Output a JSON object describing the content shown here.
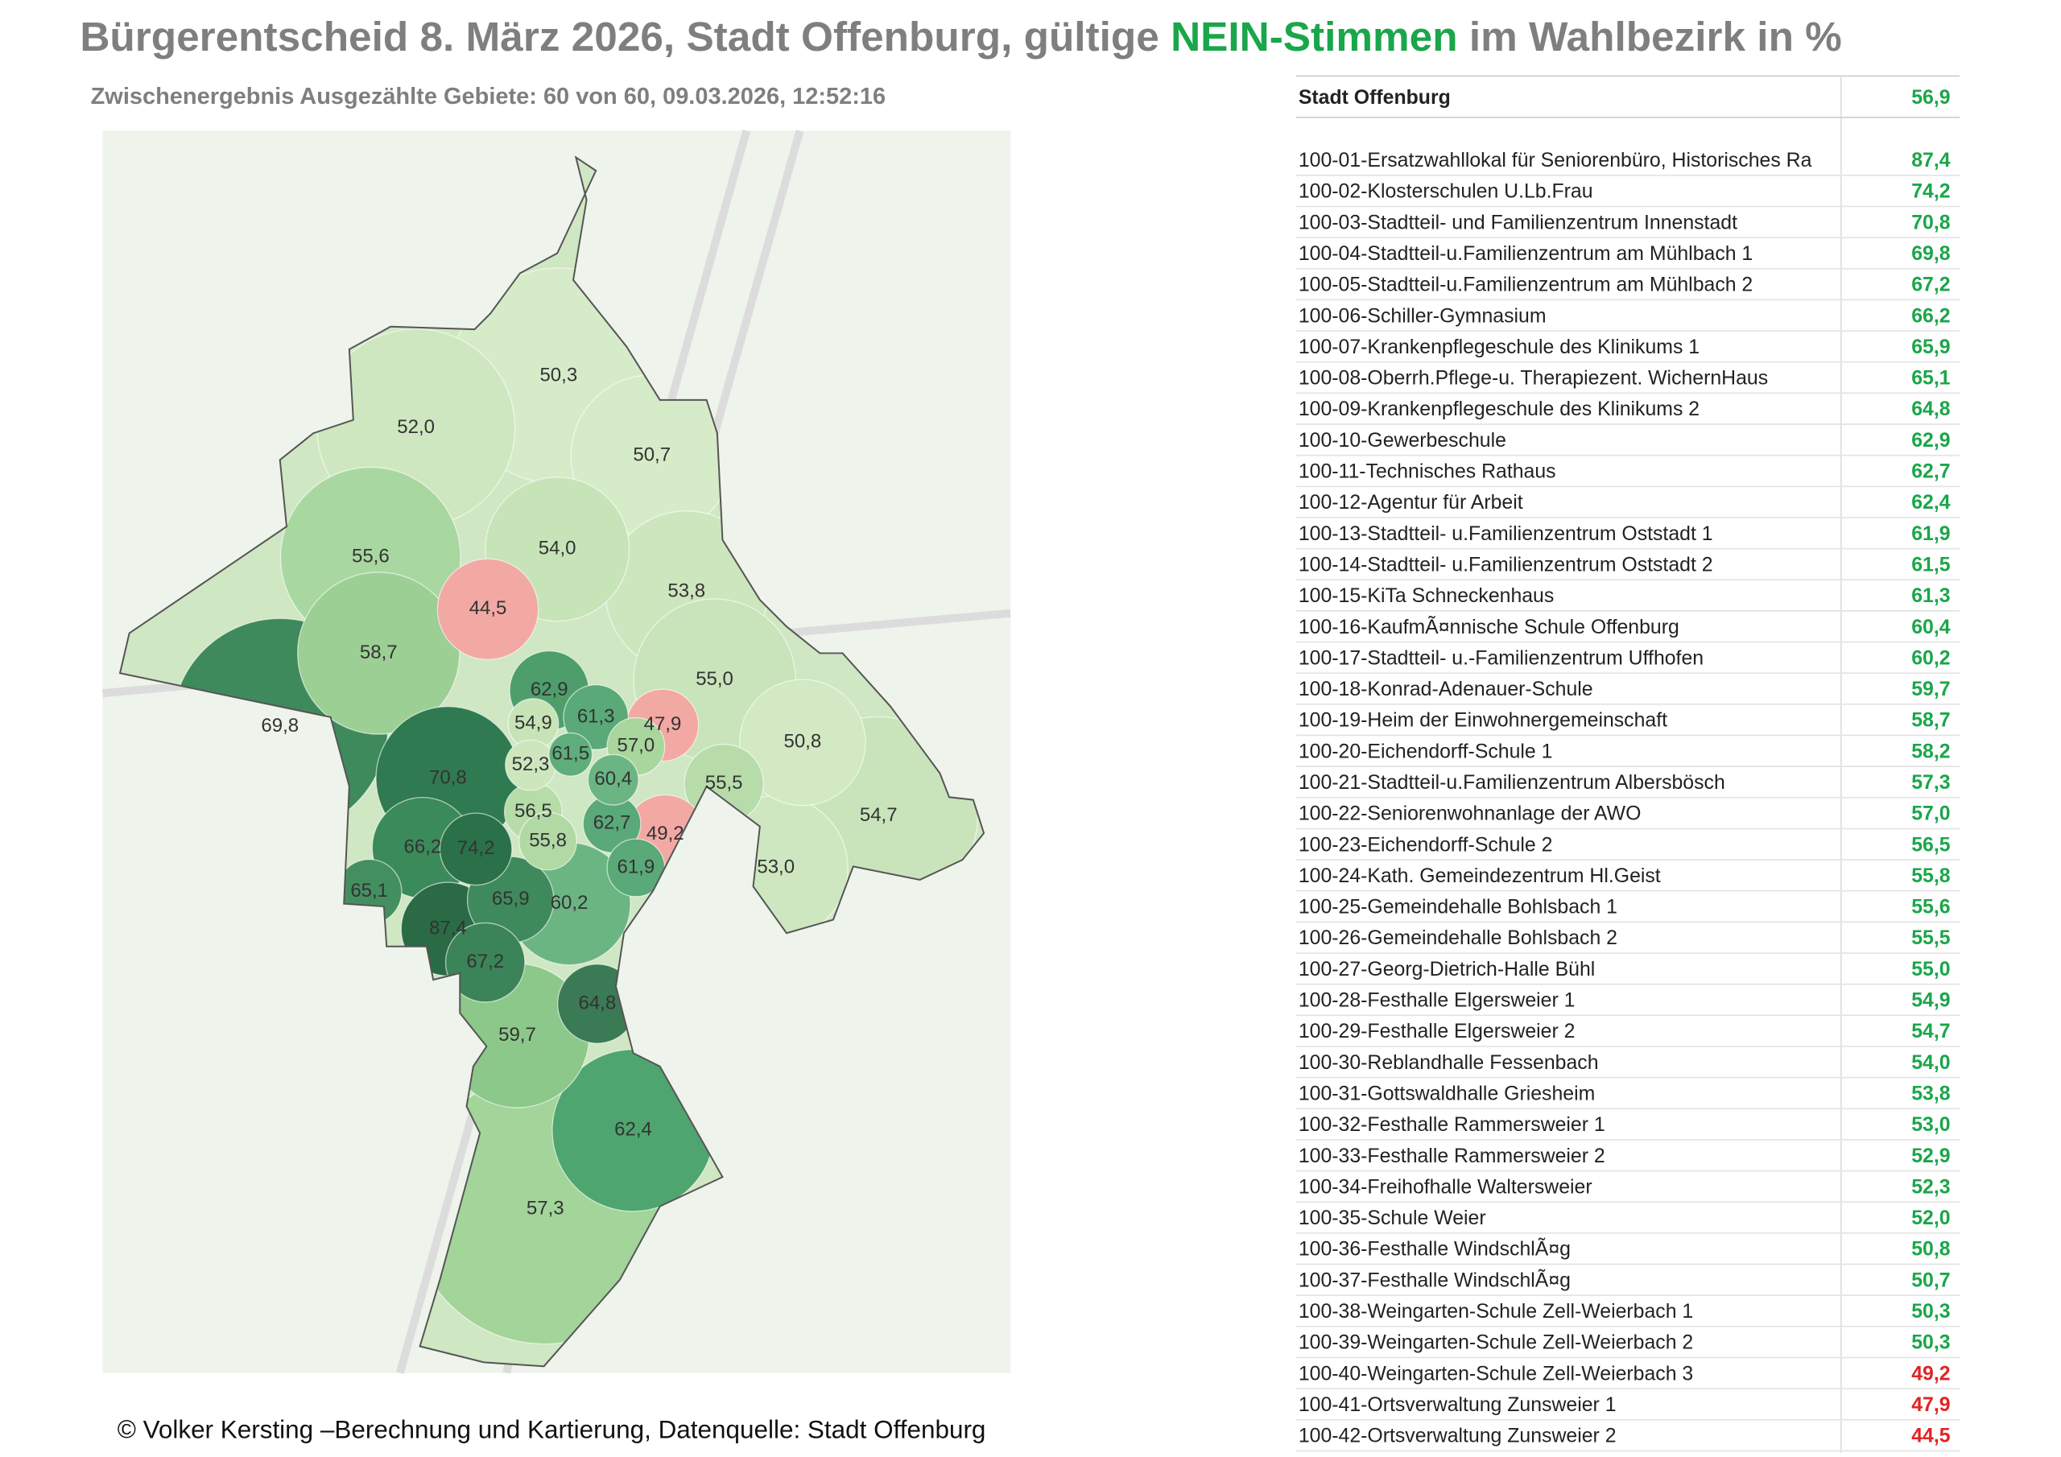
{
  "title": {
    "parts": [
      {
        "text": "Bürgerentscheid 8. März 2026, Stadt Offenburg, gültige ",
        "color": "#7f7f7f"
      },
      {
        "text": "NEIN-Stimmen",
        "color": "#1aa64a"
      },
      {
        "text": " im Wahlbezirk in %",
        "color": "#7f7f7f"
      }
    ]
  },
  "subtitle": "Zwischenergebnis Ausgezählte Gebiete: 60 von 60, 09.03.2026, 12:52:16",
  "table": {
    "total": {
      "name": "Stadt Offenburg",
      "value": "56,9",
      "color": "#1aa64a"
    },
    "rows": [
      {
        "name": "100-01-Ersatzwahllokal für Seniorenbüro, Historisches Ra",
        "value": "87,4",
        "color": "#1aa64a"
      },
      {
        "name": "100-02-Klosterschulen U.Lb.Frau",
        "value": "74,2",
        "color": "#1aa64a"
      },
      {
        "name": "100-03-Stadtteil- und Familienzentrum Innenstadt",
        "value": "70,8",
        "color": "#1aa64a"
      },
      {
        "name": "100-04-Stadtteil-u.Familienzentrum am Mühlbach 1",
        "value": "69,8",
        "color": "#1aa64a"
      },
      {
        "name": "100-05-Stadtteil-u.Familienzentrum am Mühlbach 2",
        "value": "67,2",
        "color": "#1aa64a"
      },
      {
        "name": "100-06-Schiller-Gymnasium",
        "value": "66,2",
        "color": "#1aa64a"
      },
      {
        "name": "100-07-Krankenpflegeschule des Klinikums 1",
        "value": "65,9",
        "color": "#1aa64a"
      },
      {
        "name": "100-08-Oberrh.Pflege-u. Therapiezent. WichernHaus",
        "value": "65,1",
        "color": "#1aa64a"
      },
      {
        "name": "100-09-Krankenpflegeschule des Klinikums 2",
        "value": "64,8",
        "color": "#1aa64a"
      },
      {
        "name": "100-10-Gewerbeschule",
        "value": "62,9",
        "color": "#1aa64a"
      },
      {
        "name": "100-11-Technisches Rathaus",
        "value": "62,7",
        "color": "#1aa64a"
      },
      {
        "name": "100-12-Agentur für Arbeit",
        "value": "62,4",
        "color": "#1aa64a"
      },
      {
        "name": "100-13-Stadtteil- u.Familienzentrum Oststadt 1",
        "value": "61,9",
        "color": "#1aa64a"
      },
      {
        "name": "100-14-Stadtteil- u.Familienzentrum Oststadt 2",
        "value": "61,5",
        "color": "#1aa64a"
      },
      {
        "name": "100-15-KiTa Schneckenhaus",
        "value": "61,3",
        "color": "#1aa64a"
      },
      {
        "name": "100-16-KaufmÃ¤nnische Schule Offenburg",
        "value": "60,4",
        "color": "#1aa64a"
      },
      {
        "name": "100-17-Stadtteil- u.-Familienzentrum Uffhofen",
        "value": "60,2",
        "color": "#1aa64a"
      },
      {
        "name": "100-18-Konrad-Adenauer-Schule",
        "value": "59,7",
        "color": "#1aa64a"
      },
      {
        "name": "100-19-Heim der Einwohnergemeinschaft",
        "value": "58,7",
        "color": "#1aa64a"
      },
      {
        "name": "100-20-Eichendorff-Schule 1",
        "value": "58,2",
        "color": "#1aa64a"
      },
      {
        "name": "100-21-Stadtteil-u.Familienzentrum Albersbösch",
        "value": "57,3",
        "color": "#1aa64a"
      },
      {
        "name": "100-22-Seniorenwohnanlage der AWO",
        "value": "57,0",
        "color": "#1aa64a"
      },
      {
        "name": "100-23-Eichendorff-Schule 2",
        "value": "56,5",
        "color": "#1aa64a"
      },
      {
        "name": "100-24-Kath. Gemeindezentrum Hl.Geist",
        "value": "55,8",
        "color": "#1aa64a"
      },
      {
        "name": "100-25-Gemeindehalle Bohlsbach 1",
        "value": "55,6",
        "color": "#1aa64a"
      },
      {
        "name": "100-26-Gemeindehalle Bohlsbach 2",
        "value": "55,5",
        "color": "#1aa64a"
      },
      {
        "name": "100-27-Georg-Dietrich-Halle Bühl",
        "value": "55,0",
        "color": "#1aa64a"
      },
      {
        "name": "100-28-Festhalle Elgersweier 1",
        "value": "54,9",
        "color": "#1aa64a"
      },
      {
        "name": "100-29-Festhalle Elgersweier 2",
        "value": "54,7",
        "color": "#1aa64a"
      },
      {
        "name": "100-30-Reblandhalle Fessenbach",
        "value": "54,0",
        "color": "#1aa64a"
      },
      {
        "name": "100-31-Gottswaldhalle Griesheim",
        "value": "53,8",
        "color": "#1aa64a"
      },
      {
        "name": "100-32-Festhalle Rammersweier 1",
        "value": "53,0",
        "color": "#1aa64a"
      },
      {
        "name": "100-33-Festhalle Rammersweier 2",
        "value": "52,9",
        "color": "#1aa64a"
      },
      {
        "name": "100-34-Freihofhalle Waltersweier",
        "value": "52,3",
        "color": "#1aa64a"
      },
      {
        "name": "100-35-Schule Weier",
        "value": "52,0",
        "color": "#1aa64a"
      },
      {
        "name": "100-36-Festhalle WindschlÃ¤g",
        "value": "50,8",
        "color": "#1aa64a"
      },
      {
        "name": "100-37-Festhalle WindschlÃ¤g",
        "value": "50,7",
        "color": "#1aa64a"
      },
      {
        "name": "100-38-Weingarten-Schule Zell-Weierbach 1",
        "value": "50,3",
        "color": "#1aa64a"
      },
      {
        "name": "100-39-Weingarten-Schule Zell-Weierbach 2",
        "value": "50,3",
        "color": "#1aa64a"
      },
      {
        "name": "100-40-Weingarten-Schule Zell-Weierbach 3",
        "value": "49,2",
        "color": "#e02424"
      },
      {
        "name": "100-41-Ortsverwaltung Zunsweier 1",
        "value": "47,9",
        "color": "#e02424"
      },
      {
        "name": "100-42-Ortsverwaltung Zunsweier 2",
        "value": "44,5",
        "color": "#e02424"
      }
    ]
  },
  "map": {
    "labels": [
      "50,3",
      "52,0",
      "50,7",
      "55,6",
      "54,0",
      "53,8",
      "44,5",
      "58,7",
      "55,0",
      "62,9",
      "69,8",
      "61,3",
      "47,9",
      "54,9",
      "57,0",
      "50,8",
      "61,5",
      "52,3",
      "70,8",
      "60,4",
      "55,5",
      "56,5",
      "54,7",
      "62,7",
      "66,2",
      "74,2",
      "49,2",
      "55,8",
      "53,0",
      "61,9",
      "65,1",
      "65,9",
      "60,2",
      "87,4",
      "67,2",
      "64,8",
      "59,7",
      "62,4",
      "57,3"
    ]
  },
  "footer": "©   Volker Kersting –Berechnung und Kartierung, Datenquelle: Stadt Offenburg"
}
